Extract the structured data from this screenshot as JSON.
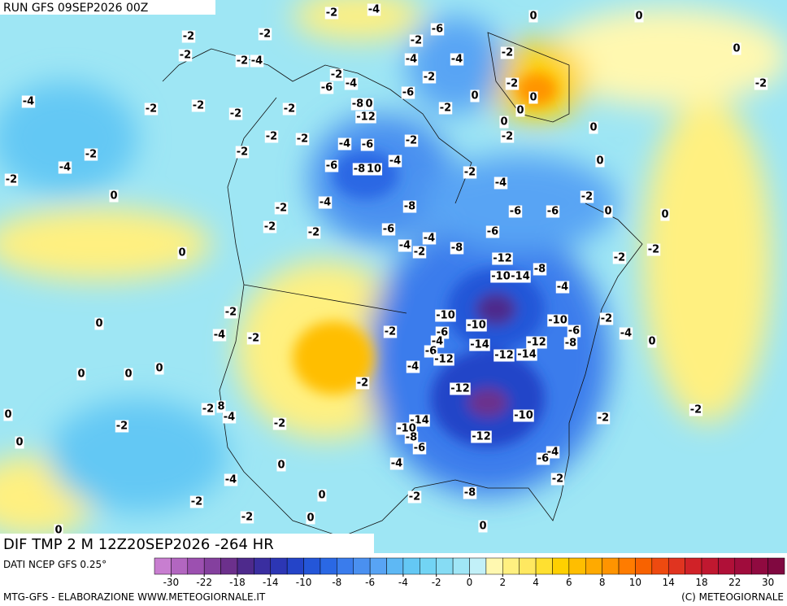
{
  "header": {
    "run": "RUN GFS 09SEP2026 00Z"
  },
  "map": {
    "title": "DIF TMP 2 M 12Z20SEP2026 -264 HR",
    "contour_labels": [
      "-2",
      "-4",
      "-2",
      "-2",
      "-6",
      "-2",
      "-2",
      "-2",
      "-4",
      "-4",
      "-2",
      "-2",
      "-2",
      "-2",
      "-6",
      "-4",
      "-2",
      "-8",
      "0",
      "-12",
      "-4",
      "-6",
      "-2",
      "-4",
      "-2",
      "-2",
      "-2",
      "0",
      "0",
      "0",
      "0",
      "-2",
      "0",
      "0",
      "0",
      "-2",
      "0",
      "0",
      "-2",
      "-4",
      "-2",
      "0",
      "-2",
      "-2",
      "-2",
      "-4",
      "-6",
      "-6",
      "-8",
      "10",
      "-4",
      "-2",
      "-2",
      "-4",
      "-2",
      "0",
      "0",
      "-4",
      "-2",
      "-2",
      "-2",
      "-6",
      "-8",
      "-4",
      "-2",
      "-4",
      "-8",
      "-6",
      "-6",
      "-6",
      "-12",
      "-8",
      "-10",
      "-14",
      "-2",
      "-2",
      "-4",
      "0",
      "0",
      "-2",
      "-4",
      "-2",
      "-2",
      "-10",
      "-6",
      "-10",
      "-4",
      "-6",
      "-12",
      "-14",
      "-12",
      "-14",
      "-12",
      "-10",
      "-6",
      "-8",
      "-2",
      "-4",
      "0",
      "-2",
      "-4",
      "-12",
      "0",
      "0",
      "0",
      "-2",
      "8",
      "-4",
      "0",
      "-2",
      "0",
      "-2",
      "-14",
      "-10",
      "-8",
      "-6",
      "-12",
      "-10",
      "-2",
      "-2",
      "-4",
      "-6",
      "0",
      "-4",
      "-4",
      "-2",
      "-2",
      "0",
      "-2",
      "-8",
      "-2",
      "0",
      "0",
      "0"
    ]
  },
  "colorbar": {
    "source": "DATI NCEP GFS 0.25°",
    "colors": [
      "#c87ed0",
      "#b266c0",
      "#9c50b0",
      "#84409e",
      "#6c308c",
      "#4e2a8c",
      "#3a2ea0",
      "#2c36b4",
      "#2444c8",
      "#2456d8",
      "#2a68e4",
      "#3a7cec",
      "#4a90f0",
      "#58a4f4",
      "#5eb8f4",
      "#64c8f4",
      "#72d4f4",
      "#86dcf4",
      "#a0e6f6",
      "#c2f0f8",
      "#fff8b0",
      "#fff080",
      "#ffe860",
      "#ffe030",
      "#ffd000",
      "#ffbe00",
      "#ffaa00",
      "#ff9400",
      "#ff7c00",
      "#f86200",
      "#ee4a10",
      "#e03420",
      "#d02228",
      "#c01830",
      "#b01038",
      "#a00c3c",
      "#900a40",
      "#800840"
    ],
    "ticks": [
      -30,
      -22,
      -18,
      -14,
      -10,
      -8,
      -6,
      -4,
      -2,
      0,
      2,
      4,
      6,
      8,
      10,
      14,
      18,
      22,
      30
    ]
  },
  "footer": {
    "left": "MTG-GFS - ELABORAZIONE WWW.METEOGIORNALE.IT",
    "right": "(C) METEOGIORNALE"
  }
}
